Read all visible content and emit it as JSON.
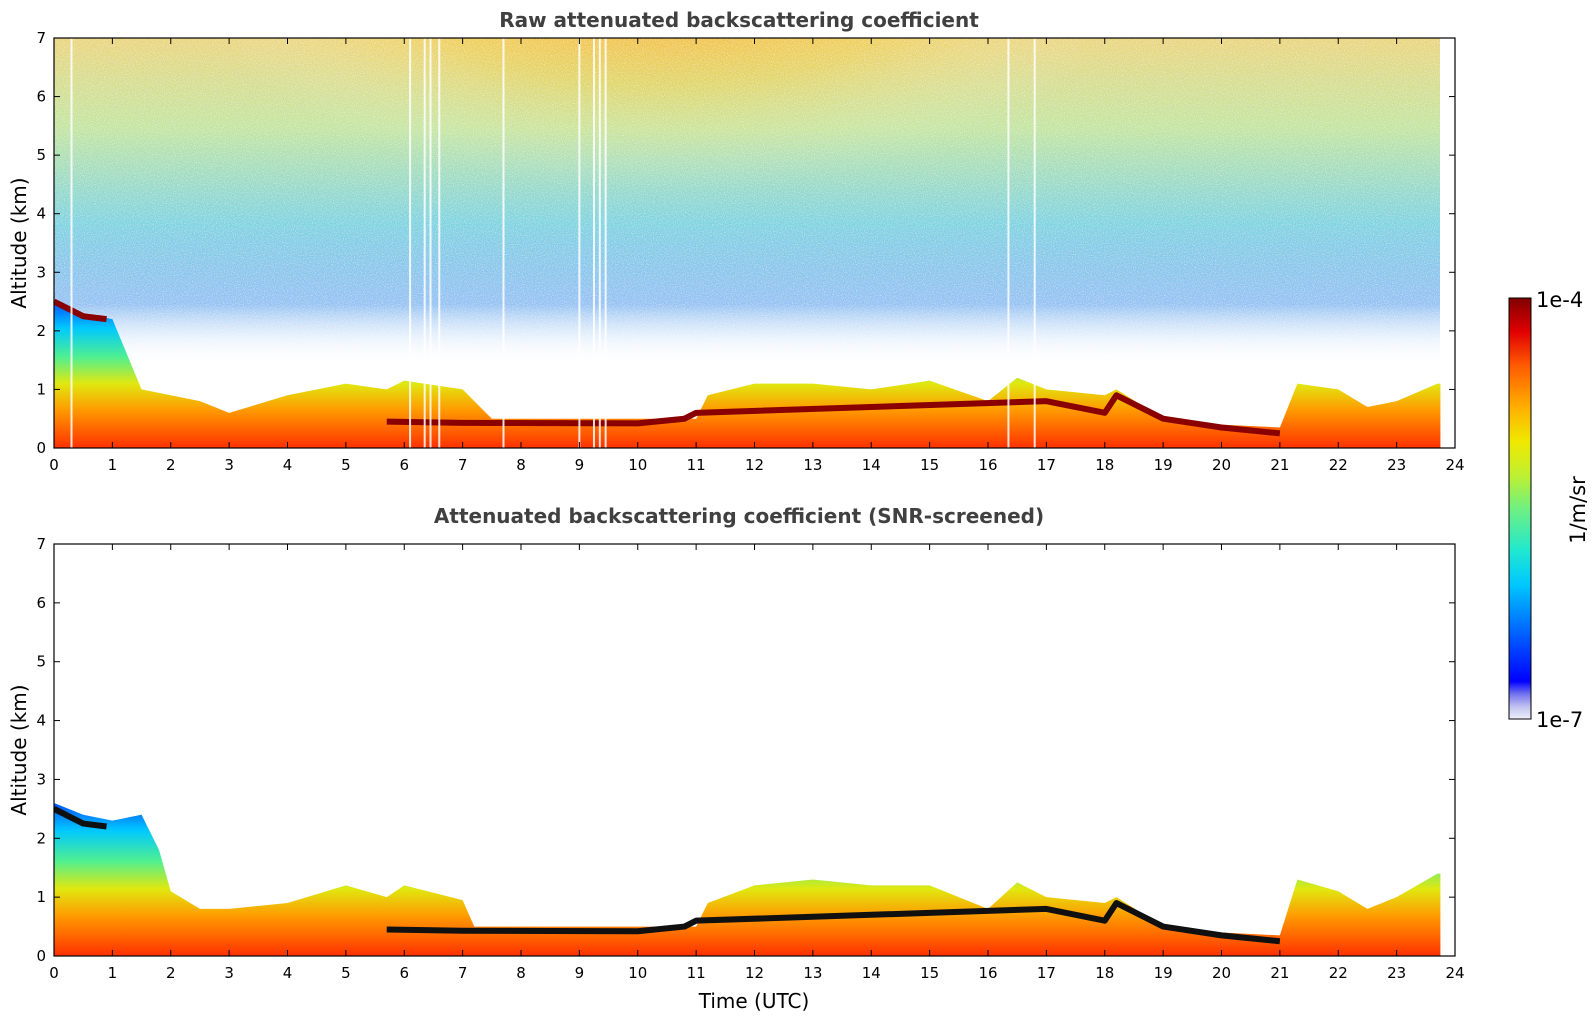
{
  "chart_data": [
    {
      "type": "heatmap",
      "title": "Raw attenuated backscattering coefficient",
      "xlabel": "",
      "ylabel": "Altitude (km)",
      "xlim": [
        0,
        24
      ],
      "ylim": [
        0,
        7
      ],
      "xticks": [
        "0",
        "1",
        "2",
        "3",
        "4",
        "5",
        "6",
        "7",
        "8",
        "9",
        "10",
        "11",
        "12",
        "13",
        "14",
        "15",
        "16",
        "17",
        "18",
        "19",
        "20",
        "21",
        "22",
        "23",
        "24"
      ],
      "yticks": [
        "0",
        "1",
        "2",
        "3",
        "4",
        "5",
        "6",
        "7"
      ],
      "data_end_hour": 23.75,
      "boundary_layer_top_km": [
        [
          0,
          2.5
        ],
        [
          0.5,
          2.3
        ],
        [
          1,
          2.2
        ],
        [
          1.5,
          1.0
        ],
        [
          2,
          0.9
        ],
        [
          2.5,
          0.8
        ],
        [
          3,
          0.6
        ],
        [
          4,
          0.9
        ],
        [
          5,
          1.1
        ],
        [
          5.7,
          1.0
        ],
        [
          6,
          1.15
        ],
        [
          7,
          1.0
        ],
        [
          7.5,
          0.5
        ],
        [
          11,
          0.5
        ],
        [
          11.2,
          0.9
        ],
        [
          12,
          1.1
        ],
        [
          13,
          1.1
        ],
        [
          14,
          1.0
        ],
        [
          15,
          1.15
        ],
        [
          16,
          0.8
        ],
        [
          16.5,
          1.2
        ],
        [
          17,
          1.0
        ],
        [
          18,
          0.9
        ],
        [
          18.2,
          1.0
        ],
        [
          19,
          0.5
        ],
        [
          20,
          0.4
        ],
        [
          21,
          0.35
        ],
        [
          21.3,
          1.1
        ],
        [
          22,
          1.0
        ],
        [
          22.5,
          0.7
        ],
        [
          23,
          0.8
        ],
        [
          23.7,
          1.1
        ]
      ],
      "cloud_layer_km": [
        [
          0,
          2.5
        ],
        [
          0.5,
          2.25
        ],
        [
          0.9,
          2.2
        ],
        [
          5.7,
          0.45
        ],
        [
          7,
          0.43
        ],
        [
          10,
          0.42
        ],
        [
          10.8,
          0.5
        ],
        [
          11,
          0.6
        ],
        [
          17,
          0.8
        ],
        [
          18,
          0.6
        ],
        [
          18.2,
          0.9
        ],
        [
          19,
          0.5
        ],
        [
          20,
          0.35
        ],
        [
          21,
          0.25
        ]
      ],
      "colorbar_min": "1e-7",
      "colorbar_max": "1e-4",
      "colorbar_label": "1/m/sr",
      "scale": "log"
    },
    {
      "type": "heatmap",
      "title": "Attenuated backscattering coefficient (SNR-screened)",
      "xlabel": "Time (UTC)",
      "ylabel": "Altitude (km)",
      "xlim": [
        0,
        24
      ],
      "ylim": [
        0,
        7
      ],
      "xticks": [
        "0",
        "1",
        "2",
        "3",
        "4",
        "5",
        "6",
        "7",
        "8",
        "9",
        "10",
        "11",
        "12",
        "13",
        "14",
        "15",
        "16",
        "17",
        "18",
        "19",
        "20",
        "21",
        "22",
        "23",
        "24"
      ],
      "yticks": [
        "0",
        "1",
        "2",
        "3",
        "4",
        "5",
        "6",
        "7"
      ],
      "data_end_hour": 23.75,
      "signal_top_km": [
        [
          0,
          2.6
        ],
        [
          0.5,
          2.4
        ],
        [
          1,
          2.3
        ],
        [
          1.5,
          2.4
        ],
        [
          1.8,
          1.8
        ],
        [
          2,
          1.1
        ],
        [
          2.5,
          0.8
        ],
        [
          3,
          0.8
        ],
        [
          4,
          0.9
        ],
        [
          5,
          1.2
        ],
        [
          5.7,
          1.0
        ],
        [
          6,
          1.2
        ],
        [
          7,
          0.95
        ],
        [
          7.2,
          0.5
        ],
        [
          11,
          0.5
        ],
        [
          11.2,
          0.9
        ],
        [
          12,
          1.2
        ],
        [
          13,
          1.3
        ],
        [
          14,
          1.2
        ],
        [
          15,
          1.2
        ],
        [
          16,
          0.8
        ],
        [
          16.5,
          1.25
        ],
        [
          17,
          1.0
        ],
        [
          18,
          0.9
        ],
        [
          18.2,
          1.0
        ],
        [
          19,
          0.5
        ],
        [
          20,
          0.4
        ],
        [
          21,
          0.35
        ],
        [
          21.3,
          1.3
        ],
        [
          22,
          1.1
        ],
        [
          22.5,
          0.8
        ],
        [
          23,
          1.0
        ],
        [
          23.7,
          1.4
        ]
      ],
      "colorbar_min": "1e-7",
      "colorbar_max": "1e-4",
      "colorbar_label": "1/m/sr",
      "scale": "log"
    }
  ],
  "colorbar": {
    "max_label": "1e-4",
    "min_label": "1e-7",
    "unit_label": "1/m/sr",
    "colors": [
      "#e8e8f8",
      "#c8c8f0",
      "#a8a8f0",
      "#7878f0",
      "#0000ff",
      "#0044ff",
      "#0088ff",
      "#00bbff",
      "#00e0e8",
      "#20e8c0",
      "#60f080",
      "#a0f040",
      "#e0e800",
      "#ffcc00",
      "#ff9900",
      "#ff6600",
      "#ff2a00",
      "#dd0000",
      "#880000"
    ]
  }
}
